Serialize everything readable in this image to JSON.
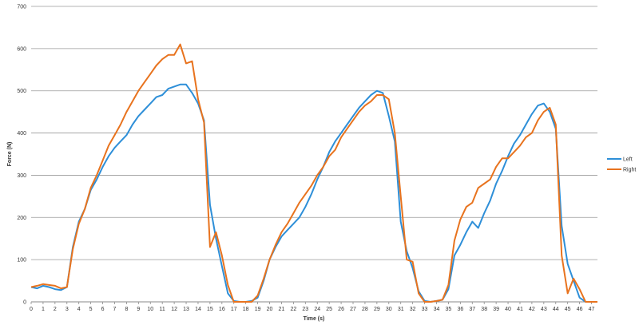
{
  "chart_data": {
    "type": "line",
    "title": "",
    "xlabel": "Time (s)",
    "ylabel": "Force (N)",
    "xlim": [
      0,
      47.5
    ],
    "ylim": [
      0,
      700
    ],
    "x_ticks": [
      0,
      1,
      2,
      3,
      4,
      5,
      6,
      7,
      8,
      9,
      10,
      11,
      12,
      13,
      14,
      15,
      16,
      17,
      18,
      19,
      20,
      21,
      22,
      23,
      24,
      25,
      26,
      27,
      28,
      29,
      30,
      31,
      32,
      33,
      34,
      35,
      36,
      37,
      38,
      39,
      40,
      41,
      42,
      43,
      44,
      45,
      46,
      47
    ],
    "y_ticks": [
      0,
      100,
      200,
      300,
      400,
      500,
      600,
      700
    ],
    "grid": "horizontal",
    "legend_position": "right",
    "series": [
      {
        "name": "Left",
        "color": "#2e8fd8",
        "points": [
          [
            0,
            35
          ],
          [
            0.5,
            32
          ],
          [
            1,
            38
          ],
          [
            1.5,
            35
          ],
          [
            2,
            30
          ],
          [
            2.5,
            28
          ],
          [
            3,
            35
          ],
          [
            3.5,
            130
          ],
          [
            4,
            190
          ],
          [
            4.5,
            220
          ],
          [
            5,
            265
          ],
          [
            5.5,
            290
          ],
          [
            6,
            320
          ],
          [
            6.5,
            345
          ],
          [
            7,
            365
          ],
          [
            7.5,
            380
          ],
          [
            8,
            395
          ],
          [
            8.5,
            420
          ],
          [
            9,
            440
          ],
          [
            9.5,
            455
          ],
          [
            10,
            470
          ],
          [
            10.5,
            485
          ],
          [
            11,
            490
          ],
          [
            11.5,
            505
          ],
          [
            12,
            510
          ],
          [
            12.5,
            515
          ],
          [
            13,
            515
          ],
          [
            13.5,
            495
          ],
          [
            14,
            470
          ],
          [
            14.5,
            430
          ],
          [
            15,
            230
          ],
          [
            15.5,
            150
          ],
          [
            16,
            85
          ],
          [
            16.5,
            20
          ],
          [
            17,
            2
          ],
          [
            17.5,
            0
          ],
          [
            18,
            0
          ],
          [
            18.5,
            2
          ],
          [
            19,
            10
          ],
          [
            19.5,
            50
          ],
          [
            20,
            100
          ],
          [
            20.5,
            130
          ],
          [
            21,
            155
          ],
          [
            21.5,
            170
          ],
          [
            22,
            185
          ],
          [
            22.5,
            200
          ],
          [
            23,
            225
          ],
          [
            23.5,
            255
          ],
          [
            24,
            290
          ],
          [
            24.5,
            320
          ],
          [
            25,
            355
          ],
          [
            25.5,
            380
          ],
          [
            26,
            400
          ],
          [
            26.5,
            420
          ],
          [
            27,
            440
          ],
          [
            27.5,
            460
          ],
          [
            28,
            475
          ],
          [
            28.5,
            490
          ],
          [
            29,
            500
          ],
          [
            29.5,
            495
          ],
          [
            30,
            440
          ],
          [
            30.5,
            380
          ],
          [
            31,
            190
          ],
          [
            31.5,
            120
          ],
          [
            32,
            80
          ],
          [
            32.5,
            25
          ],
          [
            33,
            2
          ],
          [
            33.5,
            0
          ],
          [
            34,
            2
          ],
          [
            34.5,
            5
          ],
          [
            35,
            30
          ],
          [
            35.5,
            110
          ],
          [
            36,
            135
          ],
          [
            36.5,
            165
          ],
          [
            37,
            190
          ],
          [
            37.5,
            175
          ],
          [
            38,
            210
          ],
          [
            38.5,
            240
          ],
          [
            39,
            280
          ],
          [
            39.5,
            310
          ],
          [
            40,
            345
          ],
          [
            40.5,
            375
          ],
          [
            41,
            395
          ],
          [
            41.5,
            420
          ],
          [
            42,
            445
          ],
          [
            42.5,
            465
          ],
          [
            43,
            470
          ],
          [
            43.5,
            450
          ],
          [
            44,
            410
          ],
          [
            44.5,
            180
          ],
          [
            45,
            90
          ],
          [
            45.5,
            50
          ],
          [
            46,
            10
          ],
          [
            46.5,
            0
          ],
          [
            47,
            0
          ],
          [
            47.5,
            0
          ]
        ]
      },
      {
        "name": "Right",
        "color": "#e8731e",
        "points": [
          [
            0,
            35
          ],
          [
            0.5,
            38
          ],
          [
            1,
            42
          ],
          [
            1.5,
            40
          ],
          [
            2,
            38
          ],
          [
            2.5,
            32
          ],
          [
            3,
            35
          ],
          [
            3.5,
            125
          ],
          [
            4,
            185
          ],
          [
            4.5,
            220
          ],
          [
            5,
            270
          ],
          [
            5.5,
            300
          ],
          [
            6,
            335
          ],
          [
            6.5,
            370
          ],
          [
            7,
            395
          ],
          [
            7.5,
            420
          ],
          [
            8,
            450
          ],
          [
            8.5,
            475
          ],
          [
            9,
            500
          ],
          [
            9.5,
            520
          ],
          [
            10,
            540
          ],
          [
            10.5,
            560
          ],
          [
            11,
            575
          ],
          [
            11.5,
            585
          ],
          [
            12,
            585
          ],
          [
            12.5,
            610
          ],
          [
            13,
            565
          ],
          [
            13.5,
            570
          ],
          [
            14,
            480
          ],
          [
            14.5,
            425
          ],
          [
            15,
            130
          ],
          [
            15.5,
            165
          ],
          [
            16,
            110
          ],
          [
            16.5,
            40
          ],
          [
            17,
            0
          ],
          [
            17.5,
            0
          ],
          [
            18,
            0
          ],
          [
            18.5,
            0
          ],
          [
            19,
            15
          ],
          [
            19.5,
            55
          ],
          [
            20,
            100
          ],
          [
            20.5,
            135
          ],
          [
            21,
            165
          ],
          [
            21.5,
            185
          ],
          [
            22,
            210
          ],
          [
            22.5,
            235
          ],
          [
            23,
            255
          ],
          [
            23.5,
            275
          ],
          [
            24,
            300
          ],
          [
            24.5,
            320
          ],
          [
            25,
            345
          ],
          [
            25.5,
            360
          ],
          [
            26,
            390
          ],
          [
            26.5,
            410
          ],
          [
            27,
            430
          ],
          [
            27.5,
            450
          ],
          [
            28,
            465
          ],
          [
            28.5,
            475
          ],
          [
            29,
            490
          ],
          [
            29.5,
            490
          ],
          [
            30,
            480
          ],
          [
            30.5,
            400
          ],
          [
            31,
            250
          ],
          [
            31.5,
            100
          ],
          [
            32,
            95
          ],
          [
            32.5,
            20
          ],
          [
            33,
            0
          ],
          [
            33.5,
            0
          ],
          [
            34,
            2
          ],
          [
            34.5,
            5
          ],
          [
            35,
            40
          ],
          [
            35.5,
            145
          ],
          [
            36,
            195
          ],
          [
            36.5,
            225
          ],
          [
            37,
            235
          ],
          [
            37.5,
            270
          ],
          [
            38,
            280
          ],
          [
            38.5,
            290
          ],
          [
            39,
            320
          ],
          [
            39.5,
            340
          ],
          [
            40,
            340
          ],
          [
            40.5,
            355
          ],
          [
            41,
            370
          ],
          [
            41.5,
            390
          ],
          [
            42,
            400
          ],
          [
            42.5,
            430
          ],
          [
            43,
            450
          ],
          [
            43.5,
            460
          ],
          [
            44,
            420
          ],
          [
            44.5,
            110
          ],
          [
            45,
            20
          ],
          [
            45.5,
            55
          ],
          [
            46,
            30
          ],
          [
            46.5,
            0
          ],
          [
            47,
            0
          ],
          [
            47.5,
            0
          ]
        ]
      }
    ]
  }
}
